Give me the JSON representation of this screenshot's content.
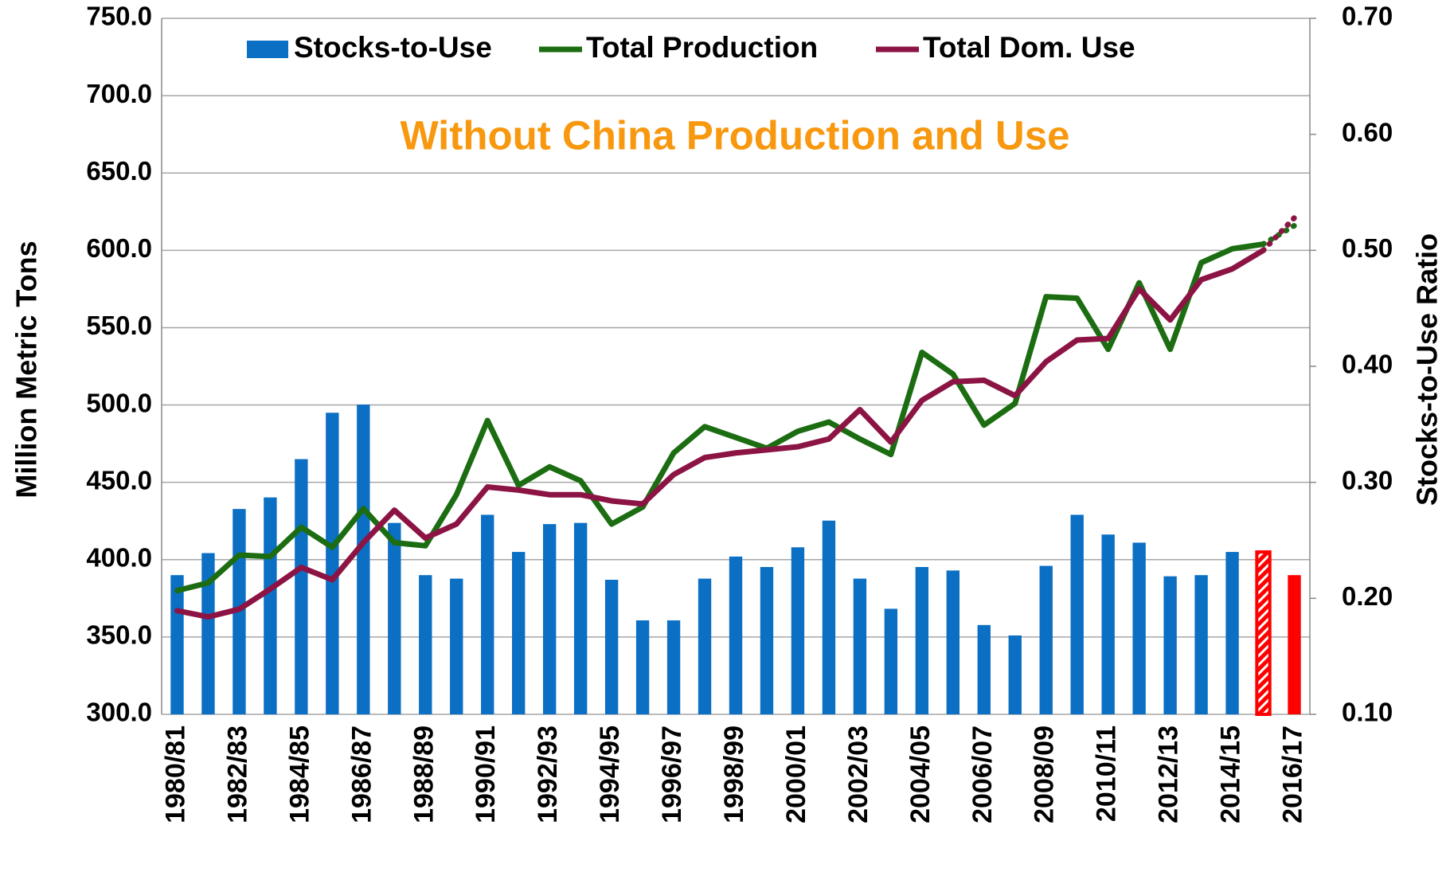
{
  "chart_data": {
    "type": "bar_line_combo",
    "annotation": "Without China Production and Use",
    "annotation_color": "#f7980f",
    "ylabel": "Million Metric Tons",
    "y2label": "Stocks-to-Use Ratio",
    "categories": [
      "1980/81",
      null,
      "1982/83",
      null,
      "1984/85",
      null,
      "1986/87",
      null,
      "1988/89",
      null,
      "1990/91",
      null,
      "1992/93",
      null,
      "1994/95",
      null,
      "1996/97",
      null,
      "1998/99",
      null,
      "2000/01",
      null,
      "2002/03",
      null,
      "2004/05",
      null,
      "2006/07",
      null,
      "2008/09",
      null,
      "2010/11",
      null,
      "2012/13",
      null,
      "2014/15",
      null,
      "2016/17"
    ],
    "ylim": [
      300,
      750
    ],
    "yticks": [
      {
        "value": 300,
        "label": "300.0"
      },
      {
        "value": 350,
        "label": "350.0"
      },
      {
        "value": 400,
        "label": "400.0"
      },
      {
        "value": 450,
        "label": "450.0"
      },
      {
        "value": 500,
        "label": "500.0"
      },
      {
        "value": 550,
        "label": "550.0"
      },
      {
        "value": 600,
        "label": "600.0"
      },
      {
        "value": 650,
        "label": "650.0"
      },
      {
        "value": 700,
        "label": "700.0"
      },
      {
        "value": 750,
        "label": "750.0"
      }
    ],
    "y2lim": [
      0.1,
      0.7
    ],
    "y2ticks": [
      {
        "value": 0.1,
        "label": "0.10"
      },
      {
        "value": 0.2,
        "label": "0.20"
      },
      {
        "value": 0.3,
        "label": "0.30"
      },
      {
        "value": 0.4,
        "label": "0.40"
      },
      {
        "value": 0.5,
        "label": "0.50"
      },
      {
        "value": 0.6,
        "label": "0.60"
      },
      {
        "value": 0.7,
        "label": "0.70"
      }
    ],
    "grid": true,
    "legend": "top",
    "series": [
      {
        "name": "Stocks-to-Use",
        "kind": "bar",
        "axis": "y2",
        "color": "#0b6fc4",
        "colors": [
          "#0b6fc4",
          "#0b6fc4",
          "#0b6fc4",
          "#0b6fc4",
          "#0b6fc4",
          "#0b6fc4",
          "#0b6fc4",
          "#0b6fc4",
          "#0b6fc4",
          "#0b6fc4",
          "#0b6fc4",
          "#0b6fc4",
          "#0b6fc4",
          "#0b6fc4",
          "#0b6fc4",
          "#0b6fc4",
          "#0b6fc4",
          "#0b6fc4",
          "#0b6fc4",
          "#0b6fc4",
          "#0b6fc4",
          "#0b6fc4",
          "#0b6fc4",
          "#0b6fc4",
          "#0b6fc4",
          "#0b6fc4",
          "#0b6fc4",
          "#0b6fc4",
          "#0b6fc4",
          "#0b6fc4",
          "#0b6fc4",
          "#0b6fc4",
          "#0b6fc4",
          "#0b6fc4",
          "#0b6fc4",
          "#ff0000",
          "#ff0000"
        ],
        "hatched": [
          false,
          false,
          false,
          false,
          false,
          false,
          false,
          false,
          false,
          false,
          false,
          false,
          false,
          false,
          false,
          false,
          false,
          false,
          false,
          false,
          false,
          false,
          false,
          false,
          false,
          false,
          false,
          false,
          false,
          false,
          false,
          false,
          false,
          false,
          false,
          true,
          false
        ],
        "values": [
          0.22,
          0.239,
          0.277,
          0.287,
          0.32,
          0.36,
          0.367,
          0.265,
          0.22,
          0.217,
          0.272,
          0.24,
          0.264,
          0.265,
          0.216,
          0.181,
          0.181,
          0.217,
          0.236,
          0.227,
          0.244,
          0.267,
          0.217,
          0.191,
          0.227,
          0.224,
          0.177,
          0.168,
          0.228,
          0.272,
          0.255,
          0.248,
          0.219,
          0.22,
          0.24,
          0.24,
          0.22
        ]
      },
      {
        "name": "Total Production",
        "kind": "line",
        "color": "#1c6d12",
        "projection_from": 35,
        "values": [
          380,
          385,
          403,
          402,
          421,
          408,
          433,
          411,
          409,
          442,
          490,
          448,
          460,
          451,
          423,
          434,
          469,
          486,
          479,
          472,
          483,
          489,
          478,
          468,
          534,
          520,
          487,
          501,
          570,
          569,
          536,
          579,
          536,
          592,
          601,
          604,
          616
        ]
      },
      {
        "name": "Total Dom. Use",
        "kind": "line",
        "color": "#8c1444",
        "projection_from": 35,
        "values": [
          367,
          363,
          368,
          381,
          395,
          387,
          411,
          432,
          414,
          423,
          447,
          445,
          442,
          442,
          438,
          436,
          455,
          466,
          469,
          471,
          473,
          478,
          497,
          476,
          503,
          515,
          516,
          506,
          528,
          542,
          543,
          575,
          555,
          581,
          588,
          600,
          621
        ]
      }
    ]
  }
}
